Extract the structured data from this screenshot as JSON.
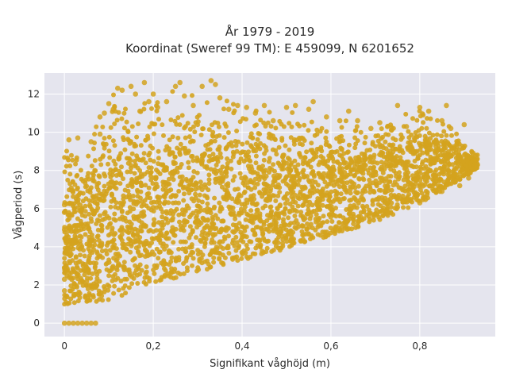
{
  "chart_data": {
    "type": "scatter",
    "title_line1": "År 1979 - 2019",
    "title_line2": "Koordinat (Sweref 99 TM): E 459099, N 6201652",
    "xlabel": "Signifikant våghöjd (m)",
    "ylabel": "Vågperiod (s)",
    "xlim": [
      -0.045,
      0.97
    ],
    "ylim": [
      -0.7,
      13.1
    ],
    "x_ticks": [
      0,
      0.2,
      0.4,
      0.6,
      0.8
    ],
    "x_tick_labels": [
      "0",
      "0,2",
      "0,4",
      "0,6",
      "0,8"
    ],
    "y_ticks": [
      0,
      2,
      4,
      6,
      8,
      10,
      12
    ],
    "y_tick_labels": [
      "0",
      "2",
      "4",
      "6",
      "8",
      "10",
      "12"
    ],
    "grid": true,
    "marker_color": "#D4A31E",
    "plot_background": "#E5E5EE",
    "envelope": [
      {
        "x": 0.0,
        "y_low": 1.0,
        "y_high": 9.6
      },
      {
        "x": 0.05,
        "y_low": 1.0,
        "y_high": 9.8
      },
      {
        "x": 0.1,
        "y_low": 1.2,
        "y_high": 12.3
      },
      {
        "x": 0.15,
        "y_low": 1.6,
        "y_high": 12.4
      },
      {
        "x": 0.2,
        "y_low": 2.0,
        "y_high": 12.0
      },
      {
        "x": 0.3,
        "y_low": 2.7,
        "y_high": 12.6
      },
      {
        "x": 0.4,
        "y_low": 3.3,
        "y_high": 11.8
      },
      {
        "x": 0.5,
        "y_low": 3.9,
        "y_high": 11.2
      },
      {
        "x": 0.6,
        "y_low": 4.6,
        "y_high": 10.8
      },
      {
        "x": 0.7,
        "y_low": 5.3,
        "y_high": 10.6
      },
      {
        "x": 0.8,
        "y_low": 6.3,
        "y_high": 11.4
      },
      {
        "x": 0.87,
        "y_low": 7.2,
        "y_high": 10.4
      },
      {
        "x": 0.93,
        "y_low": 8.1,
        "y_high": 8.9
      }
    ],
    "points": [
      {
        "x": 0.0,
        "y": 0.0
      },
      {
        "x": 0.01,
        "y": 0.0
      },
      {
        "x": 0.02,
        "y": 0.0
      },
      {
        "x": 0.03,
        "y": 0.0
      },
      {
        "x": 0.04,
        "y": 0.0
      },
      {
        "x": 0.05,
        "y": 0.0
      },
      {
        "x": 0.06,
        "y": 0.0
      },
      {
        "x": 0.07,
        "y": 0.0
      },
      {
        "x": 0.0,
        "y": 6.2
      },
      {
        "x": 0.0,
        "y": 5.8
      },
      {
        "x": 0.0,
        "y": 4.9
      },
      {
        "x": 0.0,
        "y": 2.9
      },
      {
        "x": 0.0,
        "y": 2.3
      },
      {
        "x": 0.0,
        "y": 1.7
      },
      {
        "x": 0.01,
        "y": 9.6
      },
      {
        "x": 0.03,
        "y": 9.7
      },
      {
        "x": 0.06,
        "y": 9.5
      },
      {
        "x": 0.08,
        "y": 9.9
      },
      {
        "x": 0.08,
        "y": 10.8
      },
      {
        "x": 0.09,
        "y": 11.0
      },
      {
        "x": 0.1,
        "y": 11.5
      },
      {
        "x": 0.11,
        "y": 11.2
      },
      {
        "x": 0.12,
        "y": 12.3
      },
      {
        "x": 0.13,
        "y": 12.2
      },
      {
        "x": 0.15,
        "y": 12.4
      },
      {
        "x": 0.16,
        "y": 12.0
      },
      {
        "x": 0.17,
        "y": 11.1
      },
      {
        "x": 0.18,
        "y": 12.6
      },
      {
        "x": 0.19,
        "y": 11.6
      },
      {
        "x": 0.2,
        "y": 12.0
      },
      {
        "x": 0.21,
        "y": 11.3
      },
      {
        "x": 0.23,
        "y": 11.6
      },
      {
        "x": 0.25,
        "y": 12.4
      },
      {
        "x": 0.26,
        "y": 12.6
      },
      {
        "x": 0.27,
        "y": 11.9
      },
      {
        "x": 0.29,
        "y": 11.4
      },
      {
        "x": 0.31,
        "y": 12.4
      },
      {
        "x": 0.33,
        "y": 12.7
      },
      {
        "x": 0.34,
        "y": 12.5
      },
      {
        "x": 0.35,
        "y": 11.8
      },
      {
        "x": 0.37,
        "y": 11.2
      },
      {
        "x": 0.39,
        "y": 11.4
      },
      {
        "x": 0.41,
        "y": 11.3
      },
      {
        "x": 0.43,
        "y": 11.0
      },
      {
        "x": 0.45,
        "y": 11.4
      },
      {
        "x": 0.47,
        "y": 10.6
      },
      {
        "x": 0.5,
        "y": 11.3
      },
      {
        "x": 0.52,
        "y": 11.4
      },
      {
        "x": 0.55,
        "y": 11.2
      },
      {
        "x": 0.56,
        "y": 11.6
      },
      {
        "x": 0.59,
        "y": 10.8
      },
      {
        "x": 0.62,
        "y": 10.6
      },
      {
        "x": 0.64,
        "y": 11.1
      },
      {
        "x": 0.66,
        "y": 10.6
      },
      {
        "x": 0.69,
        "y": 10.2
      },
      {
        "x": 0.71,
        "y": 10.5
      },
      {
        "x": 0.75,
        "y": 11.4
      },
      {
        "x": 0.77,
        "y": 10.3
      },
      {
        "x": 0.8,
        "y": 11.3
      },
      {
        "x": 0.82,
        "y": 11.1
      },
      {
        "x": 0.85,
        "y": 10.6
      },
      {
        "x": 0.87,
        "y": 10.2
      },
      {
        "x": 0.86,
        "y": 11.4
      },
      {
        "x": 0.9,
        "y": 10.4
      },
      {
        "x": 0.92,
        "y": 8.9
      },
      {
        "x": 0.93,
        "y": 8.3
      },
      {
        "x": 0.91,
        "y": 7.6
      },
      {
        "x": 0.89,
        "y": 7.2
      },
      {
        "x": 0.85,
        "y": 6.9
      },
      {
        "x": 0.8,
        "y": 6.3
      }
    ]
  }
}
